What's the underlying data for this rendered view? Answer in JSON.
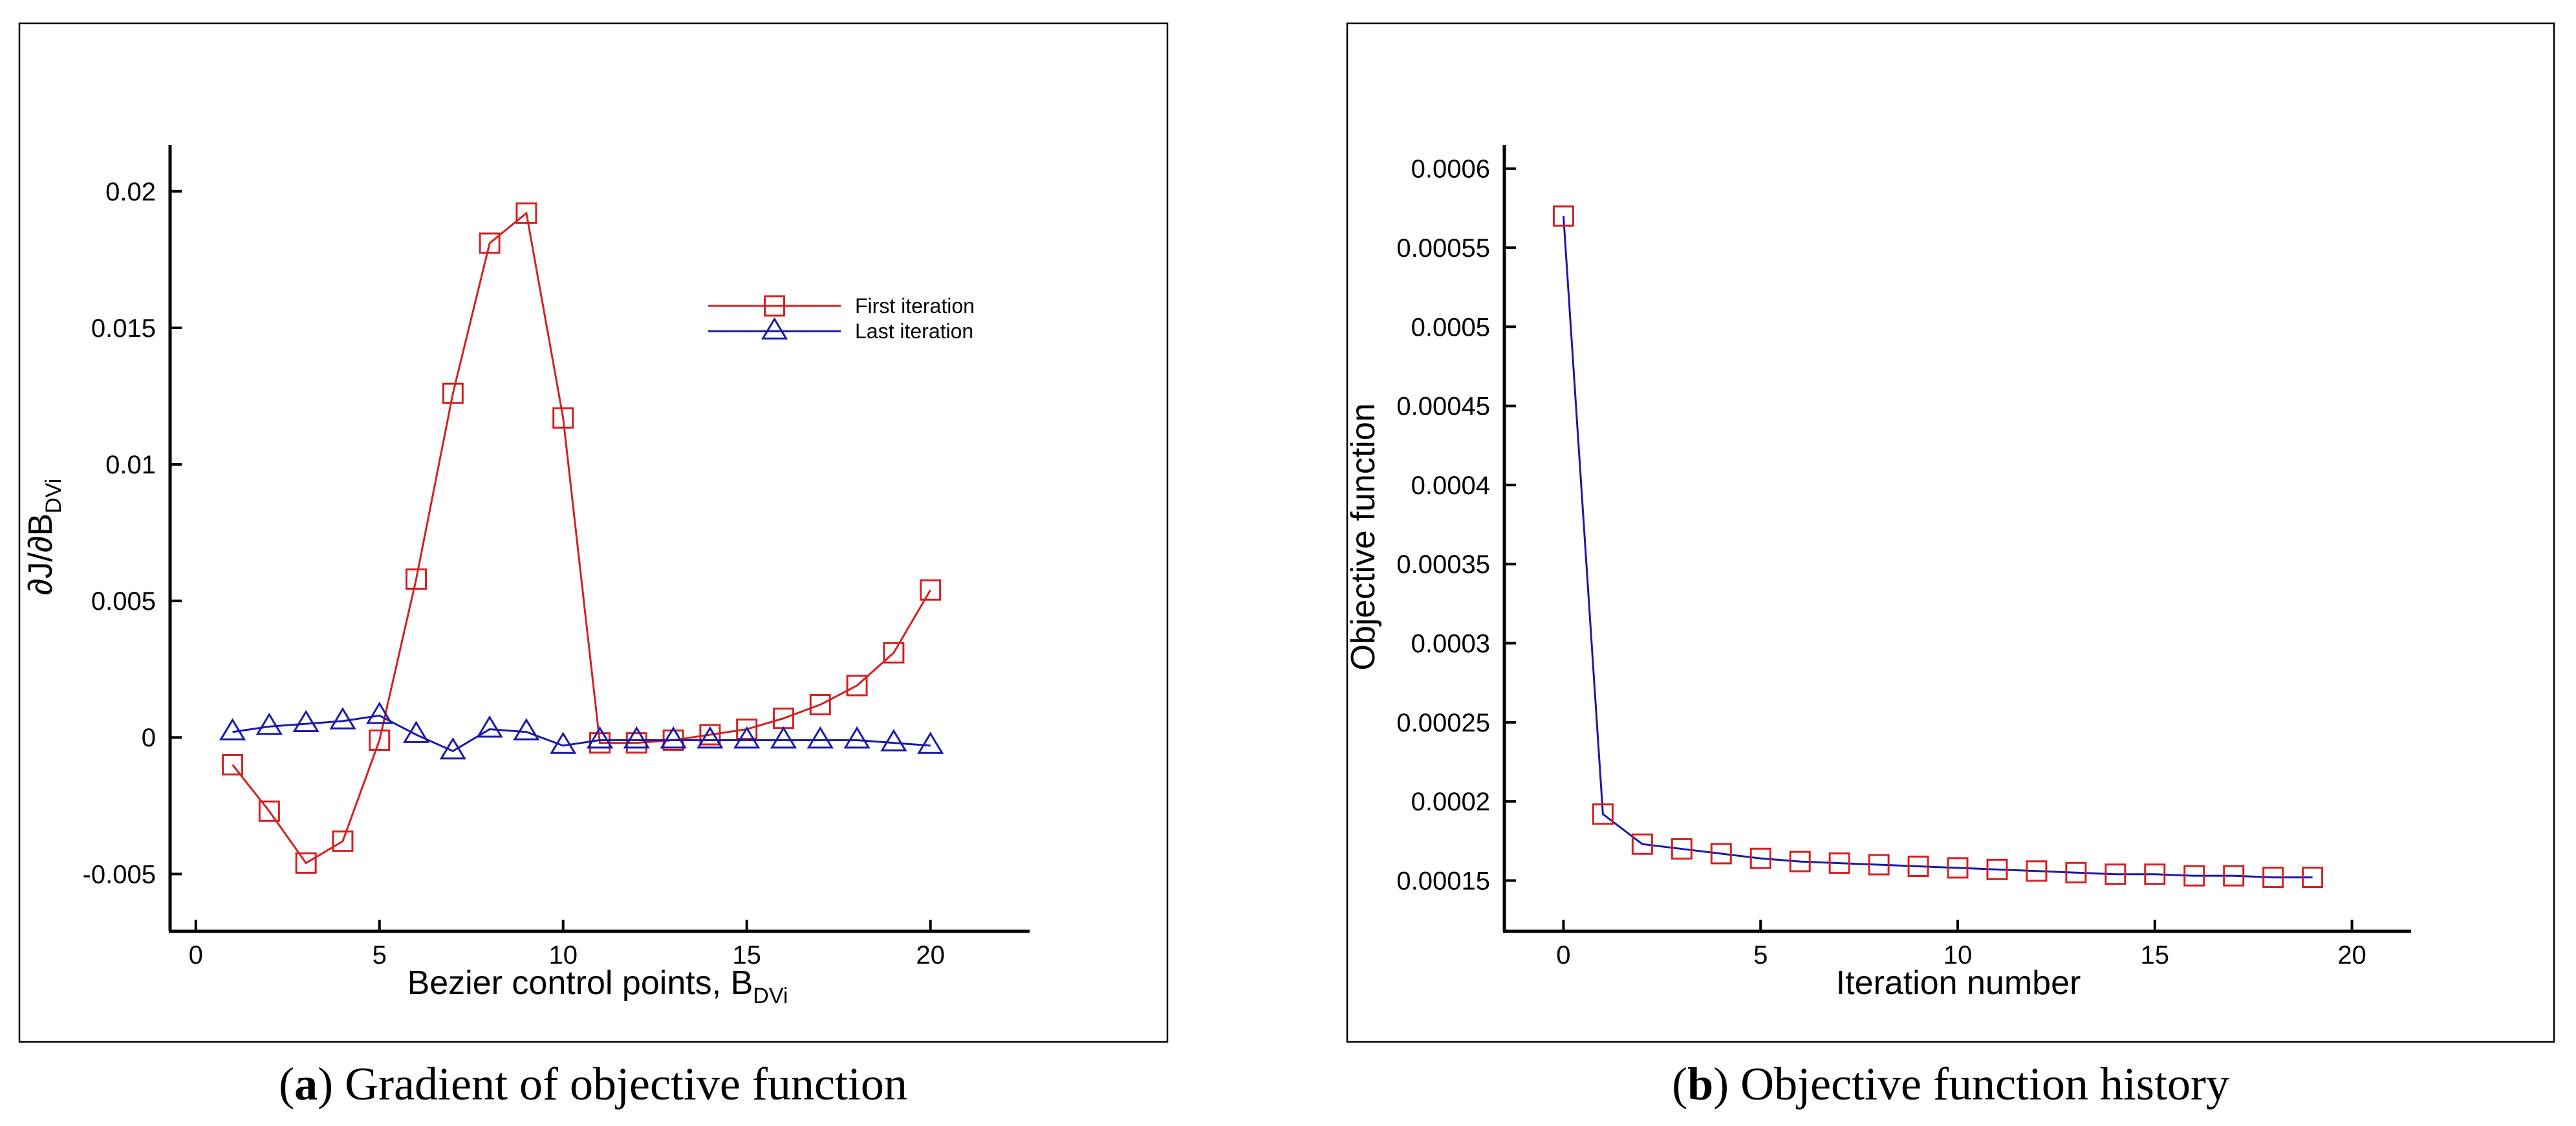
{
  "chart_data": [
    {
      "type": "line",
      "panel": "a",
      "caption_letter": "a",
      "caption_text": "Gradient of objective function",
      "xlabel": "Bezier control points,  B",
      "xlabel_sub": "DVi",
      "ylabel": "∂J/∂B",
      "ylabel_sub": "DVi",
      "xlim": [
        -0.7,
        22.7
      ],
      "ylim": [
        -0.0071,
        0.0217
      ],
      "xticks": [
        0,
        5,
        10,
        15,
        20
      ],
      "xtick_labels": [
        "0",
        "5",
        "10",
        "15",
        "20"
      ],
      "yticks": [
        -0.005,
        0,
        0.005,
        0.01,
        0.015,
        0.02
      ],
      "ytick_labels": [
        "-0.005",
        "0",
        "0.005",
        "0.01",
        "0.015",
        "0.02"
      ],
      "legend_position": "upper-right",
      "series": [
        {
          "name": "First iteration",
          "color": "#d42020",
          "marker": "square",
          "x": [
            1,
            2,
            3,
            4,
            5,
            6,
            7,
            8,
            9,
            10,
            11,
            12,
            13,
            14,
            15,
            16,
            17,
            18,
            19,
            20
          ],
          "values": [
            -0.001,
            -0.0027,
            -0.0046,
            -0.0038,
            -0.0001,
            0.0058,
            0.0126,
            0.0181,
            0.0192,
            0.0117,
            -0.0002,
            -0.0002,
            -0.0001,
            0.0001,
            0.0003,
            0.0007,
            0.0012,
            0.0019,
            0.0031,
            0.0054
          ]
        },
        {
          "name": "Last iteration",
          "color": "#1a1aa8",
          "marker": "triangle",
          "x": [
            1,
            2,
            3,
            4,
            5,
            6,
            7,
            8,
            9,
            10,
            11,
            12,
            13,
            14,
            15,
            16,
            17,
            18,
            19,
            20
          ],
          "values": [
            0.0002,
            0.0004,
            0.0005,
            0.0006,
            0.0008,
            0.0001,
            -0.0005,
            0.0003,
            0.0002,
            -0.0003,
            -0.0001,
            -0.0001,
            -0.0001,
            -0.0001,
            -0.0001,
            -0.0001,
            -0.0001,
            -0.0001,
            -0.0002,
            -0.0003
          ]
        }
      ]
    },
    {
      "type": "line",
      "panel": "b",
      "caption_letter": "b",
      "caption_text": "Objective function history",
      "xlabel": "Iteration number",
      "ylabel": "Objective function",
      "xlim": [
        -1.5,
        21.5
      ],
      "ylim": [
        0.0001179,
        0.000615
      ],
      "xticks": [
        0,
        5,
        10,
        15,
        20
      ],
      "xtick_labels": [
        "0",
        "5",
        "10",
        "15",
        "20"
      ],
      "yticks": [
        0.00015,
        0.0002,
        0.00025,
        0.0003,
        0.00035,
        0.0004,
        0.00045,
        0.0005,
        0.00055,
        0.0006
      ],
      "ytick_labels": [
        "0.00015",
        "0.0002",
        "0.00025",
        "0.0003",
        "0.00035",
        "0.0004",
        "0.00045",
        "0.0005",
        "0.00055",
        "0.0006"
      ],
      "series": [
        {
          "name": "Objective function",
          "color": "#d42020",
          "line_color": "#1a1aa8",
          "marker": "square",
          "x": [
            0,
            1,
            2,
            3,
            4,
            5,
            6,
            7,
            8,
            9,
            10,
            11,
            12,
            13,
            14,
            15,
            16,
            17,
            18,
            19
          ],
          "values": [
            0.00057,
            0.000192,
            0.000173,
            0.00017,
            0.000167,
            0.000164,
            0.000162,
            0.000161,
            0.00016,
            0.000159,
            0.000158,
            0.000157,
            0.000156,
            0.000155,
            0.000154,
            0.000154,
            0.000153,
            0.000153,
            0.000152,
            0.000152
          ]
        }
      ]
    }
  ]
}
